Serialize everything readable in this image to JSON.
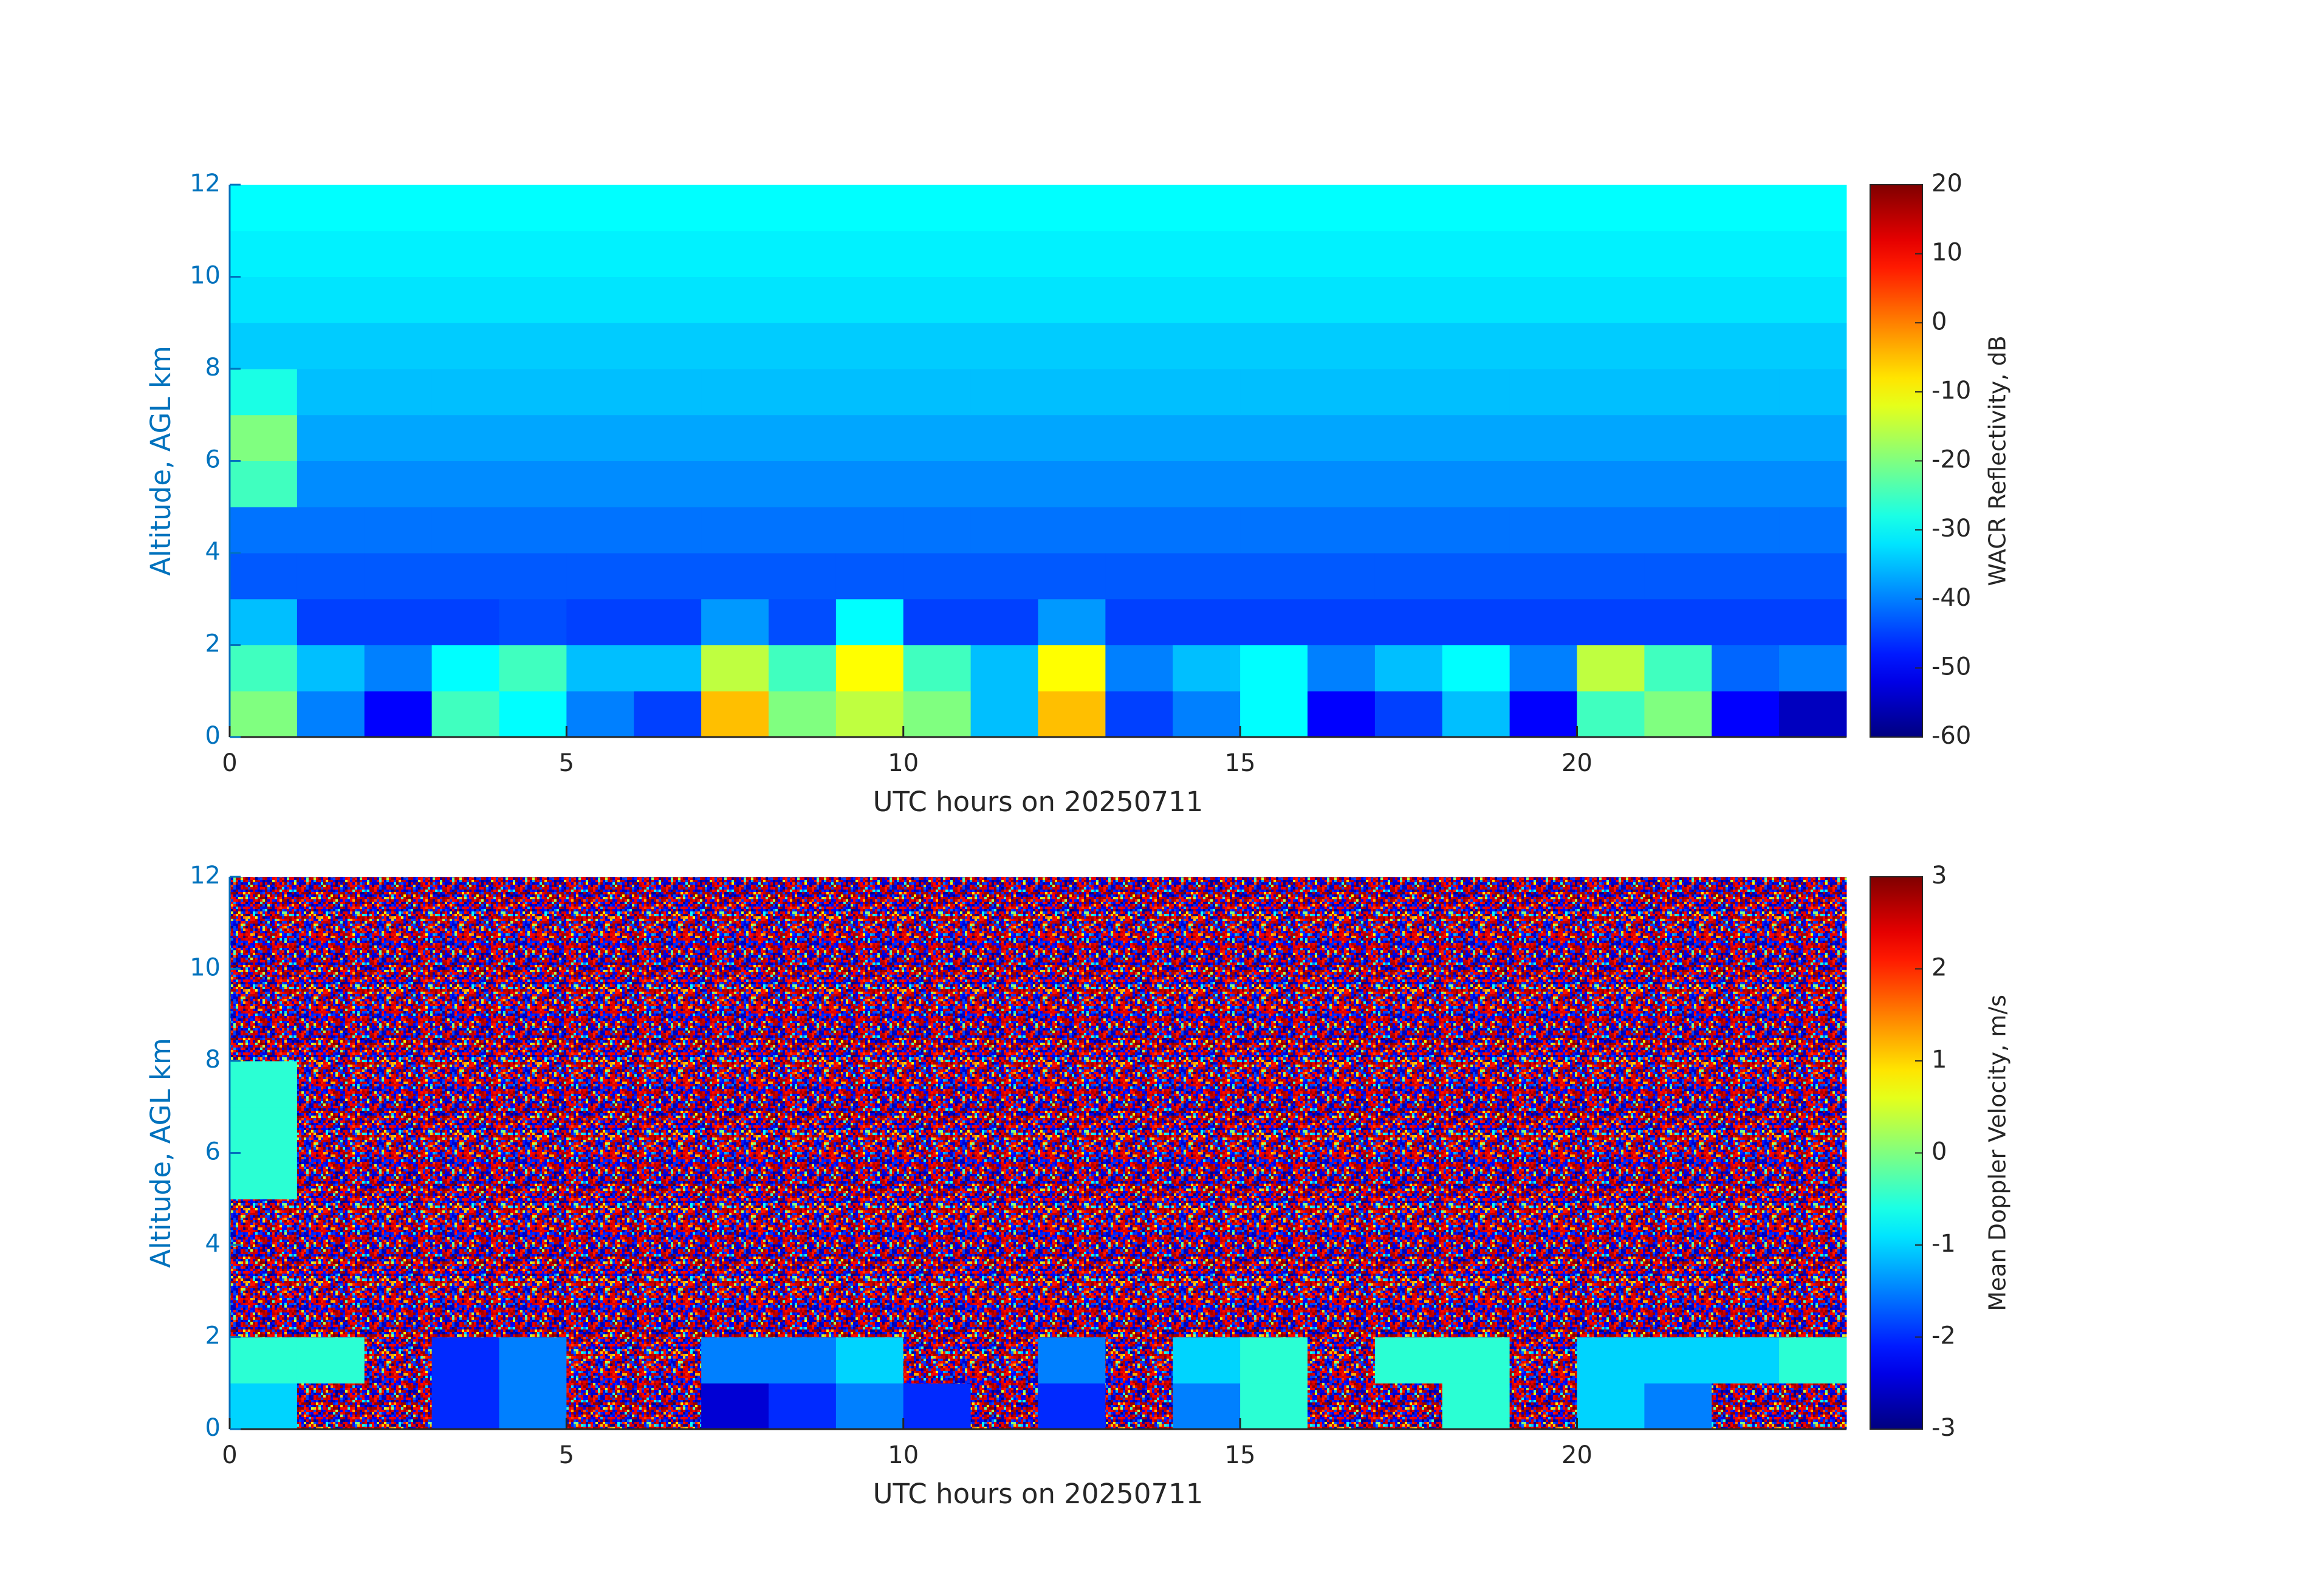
{
  "chart_data": [
    {
      "type": "heatmap",
      "x_label": "UTC hours on 20250711",
      "y_label": "Altitude, AGL km",
      "colorbar_label": "WACR Reflectivity, dB",
      "colormap": "jet",
      "xlim": [
        0,
        24
      ],
      "xticks": [
        0,
        5,
        10,
        15,
        20
      ],
      "ylim": [
        0,
        12
      ],
      "yticks": [
        0,
        2,
        4,
        6,
        8,
        10,
        12
      ],
      "clim": [
        -60,
        20
      ],
      "cticks": [
        -60,
        -50,
        -40,
        -30,
        -20,
        -10,
        0,
        10,
        20
      ],
      "z": [
        [
          -20,
          -40,
          -50,
          -25,
          -30,
          -40,
          -45,
          -5,
          -20,
          -15,
          -20,
          -35,
          -5,
          -45,
          -40,
          -30,
          -50,
          -45,
          -35,
          -50,
          -25,
          -20,
          -50,
          -55
        ],
        [
          -25,
          -35,
          -40,
          -30,
          -25,
          -35,
          -35,
          -15,
          -25,
          -10,
          -25,
          -35,
          -10,
          -40,
          -35,
          -30,
          -40,
          -35,
          -30,
          -40,
          -15,
          -25,
          -42,
          -40
        ],
        [
          -35,
          -45,
          -45,
          -45,
          -44,
          -45,
          -45,
          -38,
          -44,
          -30,
          -45,
          -45,
          -38,
          -45,
          -45,
          -45,
          -45,
          -45,
          -45,
          -45,
          -45,
          -45,
          -45,
          -45
        ],
        [
          -43,
          -43,
          -43,
          -43,
          -43,
          -43,
          -43,
          -43,
          -43,
          -43,
          -43,
          -43,
          -43,
          -43,
          -43,
          -43,
          -43,
          -43,
          -43,
          -43,
          -43,
          -43,
          -43,
          -43
        ],
        [
          -41,
          -41,
          -41,
          -41,
          -41,
          -41,
          -41,
          -41,
          -41,
          -41,
          -41,
          -41,
          -41,
          -41,
          -41,
          -41,
          -41,
          -41,
          -41,
          -41,
          -41,
          -41,
          -41,
          -41
        ],
        [
          -25,
          -39,
          -39,
          -39,
          -39,
          -39,
          -39,
          -39,
          -39,
          -39,
          -39,
          -39,
          -39,
          -39,
          -39,
          -39,
          -39,
          -39,
          -39,
          -39,
          -39,
          -39,
          -39,
          -39
        ],
        [
          -20,
          -37,
          -37,
          -37,
          -37,
          -37,
          -37,
          -37,
          -37,
          -37,
          -37,
          -37,
          -37,
          -37,
          -37,
          -37,
          -37,
          -37,
          -37,
          -37,
          -37,
          -37,
          -37,
          -37
        ],
        [
          -28,
          -35,
          -35,
          -35,
          -35,
          -35,
          -35,
          -35,
          -35,
          -35,
          -35,
          -35,
          -35,
          -35,
          -35,
          -35,
          -35,
          -35,
          -35,
          -35,
          -35,
          -35,
          -35,
          -35
        ],
        [
          -34,
          -34,
          -34,
          -34,
          -34,
          -34,
          -34,
          -34,
          -34,
          -34,
          -34,
          -34,
          -34,
          -34,
          -34,
          -34,
          -34,
          -34,
          -34,
          -34,
          -34,
          -34,
          -34,
          -34
        ],
        [
          -32,
          -32,
          -32,
          -32,
          -32,
          -32,
          -32,
          -32,
          -32,
          -32,
          -32,
          -32,
          -32,
          -32,
          -32,
          -32,
          -32,
          -32,
          -32,
          -32,
          -32,
          -32,
          -32,
          -32
        ],
        [
          -31,
          -31,
          -31,
          -31,
          -31,
          -31,
          -31,
          -31,
          -31,
          -31,
          -31,
          -31,
          -31,
          -31,
          -31,
          -31,
          -31,
          -31,
          -31,
          -31,
          -31,
          -31,
          -31,
          -31
        ],
        [
          -30,
          -30,
          -30,
          -30,
          -30,
          -30,
          -30,
          -30,
          -30,
          -30,
          -30,
          -30,
          -30,
          -30,
          -30,
          -30,
          -30,
          -30,
          -30,
          -30,
          -30,
          -30,
          -30,
          -30
        ]
      ]
    },
    {
      "type": "heatmap",
      "x_label": "UTC hours on 20250711",
      "y_label": "Altitude, AGL km",
      "colorbar_label": "Mean Doppler Velocity, m/s",
      "colormap": "jet",
      "xlim": [
        0,
        24
      ],
      "xticks": [
        0,
        5,
        10,
        15,
        20
      ],
      "ylim": [
        0,
        12
      ],
      "yticks": [
        0,
        2,
        4,
        6,
        8,
        10,
        12
      ],
      "clim": [
        -3,
        3
      ],
      "cticks": [
        -3,
        -2,
        -1,
        0,
        1,
        2,
        3
      ],
      "z": [
        [
          -1,
          null,
          null,
          -2,
          -1.5,
          null,
          null,
          -2.5,
          -2,
          -1.5,
          -2,
          null,
          -2,
          null,
          -1.5,
          -0.5,
          null,
          null,
          -0.5,
          null,
          -1,
          -1.5,
          null,
          null
        ],
        [
          -0.5,
          -0.5,
          null,
          -2,
          -1.5,
          null,
          null,
          -1.5,
          -1.5,
          -1,
          null,
          null,
          -1.5,
          null,
          -1,
          -0.5,
          null,
          -0.5,
          -0.5,
          null,
          -1,
          -1,
          -1,
          -0.5
        ],
        [
          null,
          null,
          null,
          null,
          null,
          null,
          null,
          null,
          null,
          null,
          null,
          null,
          null,
          null,
          null,
          null,
          null,
          null,
          null,
          null,
          null,
          null,
          null,
          null
        ],
        [
          null,
          null,
          null,
          null,
          null,
          null,
          null,
          null,
          null,
          null,
          null,
          null,
          null,
          null,
          null,
          null,
          null,
          null,
          null,
          null,
          null,
          null,
          null,
          null
        ],
        [
          null,
          null,
          null,
          null,
          null,
          null,
          null,
          null,
          null,
          null,
          null,
          null,
          null,
          null,
          null,
          null,
          null,
          null,
          null,
          null,
          null,
          null,
          null,
          null
        ],
        [
          -0.5,
          null,
          null,
          null,
          null,
          null,
          null,
          null,
          null,
          null,
          null,
          null,
          null,
          null,
          null,
          null,
          null,
          null,
          null,
          null,
          null,
          null,
          null,
          null
        ],
        [
          -0.5,
          null,
          null,
          null,
          null,
          null,
          null,
          null,
          null,
          null,
          null,
          null,
          null,
          null,
          null,
          null,
          null,
          null,
          null,
          null,
          null,
          null,
          null,
          null
        ],
        [
          -0.5,
          null,
          null,
          null,
          null,
          null,
          null,
          null,
          null,
          null,
          null,
          null,
          null,
          null,
          null,
          null,
          null,
          null,
          null,
          null,
          null,
          null,
          null,
          null
        ],
        [
          null,
          null,
          null,
          null,
          null,
          null,
          null,
          null,
          null,
          null,
          null,
          null,
          null,
          null,
          null,
          null,
          null,
          null,
          null,
          null,
          null,
          null,
          null,
          null
        ],
        [
          null,
          null,
          null,
          null,
          null,
          null,
          null,
          null,
          null,
          null,
          null,
          null,
          null,
          null,
          null,
          null,
          null,
          null,
          null,
          null,
          null,
          null,
          null,
          null
        ],
        [
          null,
          null,
          null,
          null,
          null,
          null,
          null,
          null,
          null,
          null,
          null,
          null,
          null,
          null,
          null,
          null,
          null,
          null,
          null,
          null,
          null,
          null,
          null,
          null
        ],
        [
          null,
          null,
          null,
          null,
          null,
          null,
          null,
          null,
          null,
          null,
          null,
          null,
          null,
          null,
          null,
          null,
          null,
          null,
          null,
          null,
          null,
          null,
          null,
          null
        ]
      ]
    }
  ]
}
